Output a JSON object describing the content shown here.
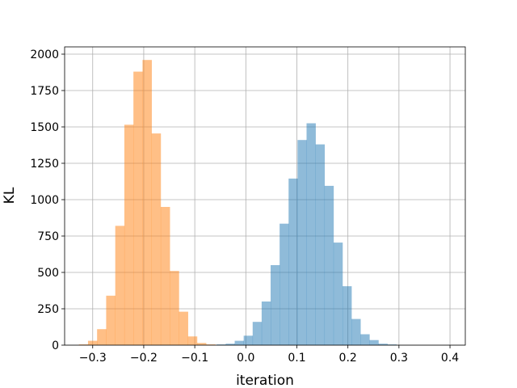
{
  "chart_data": {
    "type": "histogram",
    "xlabel": "iteration",
    "ylabel": "KL",
    "xlim": [
      -0.355,
      0.43
    ],
    "ylim": [
      0,
      2050
    ],
    "xticks": [
      -0.3,
      -0.2,
      -0.1,
      0.0,
      0.1,
      0.2,
      0.3,
      0.4
    ],
    "xtick_labels": [
      "−0.3",
      "−0.2",
      "−0.1",
      "0.0",
      "0.1",
      "0.2",
      "0.3",
      "0.4"
    ],
    "yticks": [
      0,
      250,
      500,
      750,
      1000,
      1250,
      1500,
      1750,
      2000
    ],
    "ytick_labels": [
      "0",
      "250",
      "500",
      "750",
      "1000",
      "1250",
      "1500",
      "1750",
      "2000"
    ],
    "grid": true,
    "legend": "none",
    "series": [
      {
        "color": "#1f77b4",
        "opacity": 0.5,
        "bin_start": -0.057,
        "bin_width": 0.0176,
        "counts": [
          5,
          10,
          30,
          65,
          160,
          300,
          550,
          835,
          1145,
          1410,
          1525,
          1380,
          1095,
          705,
          405,
          180,
          75,
          35,
          10,
          5
        ]
      },
      {
        "color": "#ff7f0e",
        "opacity": 0.5,
        "bin_start": -0.327,
        "bin_width": 0.0178,
        "counts": [
          5,
          30,
          110,
          340,
          820,
          1515,
          1880,
          1960,
          1455,
          950,
          510,
          230,
          60,
          15,
          5
        ]
      }
    ]
  }
}
